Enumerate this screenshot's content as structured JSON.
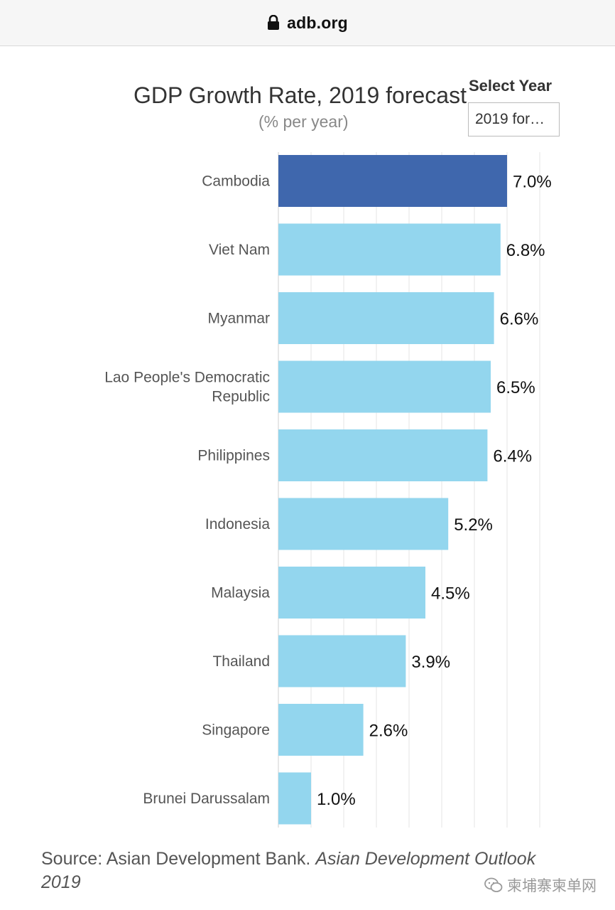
{
  "browser": {
    "url": "adb.org"
  },
  "header": {
    "title": "GDP Growth Rate, 2019 forecast",
    "subtitle": "(% per year)",
    "select_label": "Select Year",
    "select_value": "2019 for…"
  },
  "chart_data": {
    "type": "bar",
    "orientation": "horizontal",
    "title": "GDP Growth Rate, 2019 forecast",
    "subtitle": "(% per year)",
    "categories": [
      "Cambodia",
      "Viet Nam",
      "Myanmar",
      "Lao People's Democratic Republic",
      "Philippines",
      "Indonesia",
      "Malaysia",
      "Thailand",
      "Singapore",
      "Brunei Darussalam"
    ],
    "values": [
      7.0,
      6.8,
      6.6,
      6.5,
      6.4,
      5.2,
      4.5,
      3.9,
      2.6,
      1.0
    ],
    "value_labels": [
      "7.0%",
      "6.8%",
      "6.6%",
      "6.5%",
      "6.4%",
      "5.2%",
      "4.5%",
      "3.9%",
      "2.6%",
      "1.0%"
    ],
    "xlim": [
      0,
      8
    ],
    "grid": true,
    "highlight_category": "Cambodia",
    "colors": {
      "highlight": "#3f67ad",
      "default": "#93d6ee",
      "grid": "#e6e6e6"
    }
  },
  "footer": {
    "source_prefix": "Source: Asian Development Bank. ",
    "source_italic": "Asian Development Outlook 2019"
  },
  "watermark": {
    "text": "柬埔寨柬单网",
    "icon": "wechat-icon"
  }
}
